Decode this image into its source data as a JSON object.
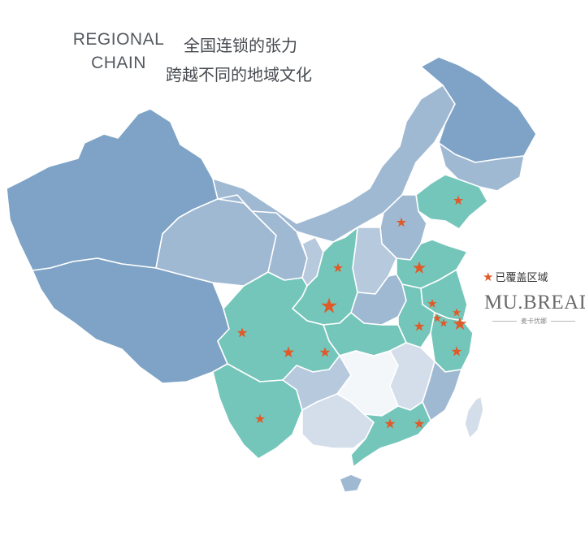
{
  "heading": {
    "en_line1": "REGIONAL",
    "en_line2": "CHAIN",
    "cn_line1": "全国连锁的张力",
    "cn_line2": "跨越不同的地域文化"
  },
  "legend": {
    "icon": "star-icon",
    "label": "已覆盖区域"
  },
  "brand": {
    "logo_text": "MU.BREAD",
    "subtitle": "麦卡优娜"
  },
  "colors": {
    "covered_region": "#74c6ba",
    "west_region": "#7ea3c6",
    "north_region": "#9fb9d3",
    "central_region": "#b6c9dd",
    "south_region": "#d3deea",
    "blank_region": "#f4f7fa",
    "marker": "#e05a28",
    "border": "#ffffff"
  }
}
